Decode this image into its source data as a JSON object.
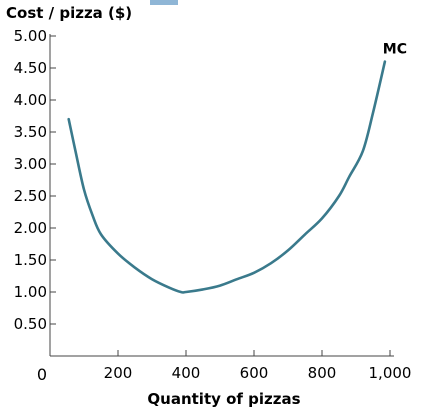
{
  "chart_data": {
    "type": "line",
    "title": "",
    "ylabel": "Cost / pizza ($)",
    "xlabel": "Quantity of pizzas",
    "xlim": [
      0,
      1000
    ],
    "ylim": [
      0,
      5.0
    ],
    "x_ticks": [
      200,
      400,
      600,
      800,
      1000
    ],
    "x_tick_labels": [
      "200",
      "400",
      "600",
      "800",
      "1,000"
    ],
    "x_origin_label": "0",
    "y_ticks": [
      0.5,
      1.0,
      1.5,
      2.0,
      2.5,
      3.0,
      3.5,
      4.0,
      4.5,
      5.0
    ],
    "y_tick_labels": [
      "0.50",
      "1.00",
      "1.50",
      "2.00",
      "2.50",
      "3.00",
      "3.50",
      "4.00",
      "4.50",
      "5.00"
    ],
    "grid": false,
    "legend": "none",
    "series": [
      {
        "name": "MC",
        "color": "#3a7a8c",
        "x": [
          55,
          75,
          100,
          125,
          150,
          200,
          250,
          300,
          350,
          385,
          400,
          450,
          500,
          550,
          600,
          650,
          700,
          750,
          800,
          850,
          880,
          920,
          950,
          985
        ],
        "y": [
          3.7,
          3.2,
          2.6,
          2.2,
          1.9,
          1.6,
          1.38,
          1.2,
          1.07,
          1.0,
          1.0,
          1.04,
          1.1,
          1.2,
          1.3,
          1.45,
          1.65,
          1.9,
          2.15,
          2.5,
          2.8,
          3.2,
          3.8,
          4.6
        ]
      }
    ]
  }
}
